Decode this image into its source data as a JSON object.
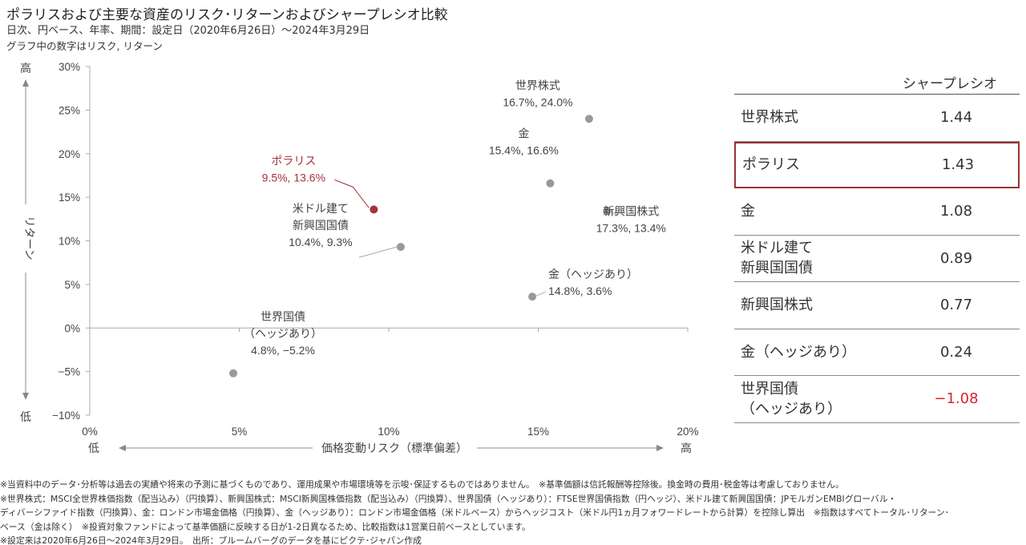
{
  "header": {
    "title": "ポラリスおよび主要な資産のリスク･リターンおよびシャープレシオ比較",
    "subtitle": "日次、円ベース、年率、期間：設定日（2020年6月26日）～2024年3月29日",
    "note": "グラフ中の数字はリスク, リターン"
  },
  "chart_data": {
    "type": "scatter",
    "xlabel": "価格変動リスク（標準偏差）",
    "ylabel": "リターン",
    "x_low_label": "低",
    "x_high_label": "高",
    "y_low_label": "低",
    "y_high_label": "高",
    "xlim": [
      0,
      20
    ],
    "ylim": [
      -10,
      30
    ],
    "x_ticks": [
      0,
      5,
      10,
      15,
      20
    ],
    "y_ticks": [
      -10,
      -5,
      0,
      5,
      10,
      15,
      20,
      25,
      30
    ],
    "x_tick_labels": [
      "0%",
      "5%",
      "10%",
      "15%",
      "20%"
    ],
    "y_tick_labels": [
      "−10%",
      "−5%",
      "0%",
      "5%",
      "10%",
      "15%",
      "20%",
      "25%",
      "30%"
    ],
    "grid": false,
    "points": [
      {
        "name": [
          "世界株式"
        ],
        "label": "16.7%, 24.0%",
        "x": 16.7,
        "y": 24.0,
        "color": "#999999"
      },
      {
        "name": [
          "金"
        ],
        "label": "15.4%, 16.6%",
        "x": 15.4,
        "y": 16.6,
        "color": "#999999"
      },
      {
        "name": [
          "ポラリス"
        ],
        "label": "9.5%, 13.6%",
        "x": 9.5,
        "y": 13.6,
        "color": "#a3333d",
        "highlight": true
      },
      {
        "name": [
          "新興国株式"
        ],
        "label": "17.3%, 13.4%",
        "x": 17.3,
        "y": 13.4,
        "color": "#999999"
      },
      {
        "name": [
          "米ドル建て",
          "新興国国債"
        ],
        "label": "10.4%, 9.3%",
        "x": 10.4,
        "y": 9.3,
        "color": "#999999"
      },
      {
        "name": [
          "金（ヘッジあり）"
        ],
        "label": "14.8%, 3.6%",
        "x": 14.8,
        "y": 3.6,
        "color": "#999999"
      },
      {
        "name": [
          "世界国債",
          "（ヘッジあり）"
        ],
        "label": "4.8%, −5.2%",
        "x": 4.8,
        "y": -5.2,
        "color": "#999999"
      }
    ]
  },
  "sharpe": {
    "header": "シャープレシオ",
    "rows": [
      {
        "label": "世界株式",
        "value": "1.44"
      },
      {
        "label": "ポラリス",
        "value": "1.43"
      },
      {
        "label": "金",
        "value": "1.08"
      },
      {
        "label": "米ドル建て\n新興国国債",
        "value": "0.89"
      },
      {
        "label": "新興国株式",
        "value": "0.77"
      },
      {
        "label": "金（ヘッジあり）",
        "value": "0.24"
      },
      {
        "label": "世界国債\n（ヘッジあり）",
        "value": "−1.08"
      }
    ]
  },
  "notes": [
    "※当資料中のデータ･分析等は過去の実績や将来の予測に基づくものであり、運用成果や市場環境等を示唆･保証するものではありません。　※基準価額は信託報酬等控除後。換金時の費用･税金等は考慮しておりません。",
    "※世界株式：MSCI全世界株価指数（配当込み）（円換算）、新興国株式：MSCI新興国株価指数（配当込み）（円換算）、世界国債（ヘッジあり）：FTSE世界国債指数（円ヘッジ）、米ドル建て新興国国債：JPモルガンEMBIグローバル・",
    "ディバーシファイド指数（円換算）、金：ロンドン市場金価格（円換算）、金（ヘッジあり）：ロンドン市場金価格（米ドルベース）からヘッジコスト（米ドル円1ヵ月フォワードレートから計算）を控除し算出　※指数はすべてトータル･リターン･",
    "ベース（金は除く）　※投資対象ファンドによって基準価額に反映する日が1-2日異なるため、比較指数は1営業日前ベースとしています。",
    "※設定来は2020年6月26日～2024年3月29日。　出所：ブルームバーグのデータを基にピクテ･ジャパン作成"
  ]
}
